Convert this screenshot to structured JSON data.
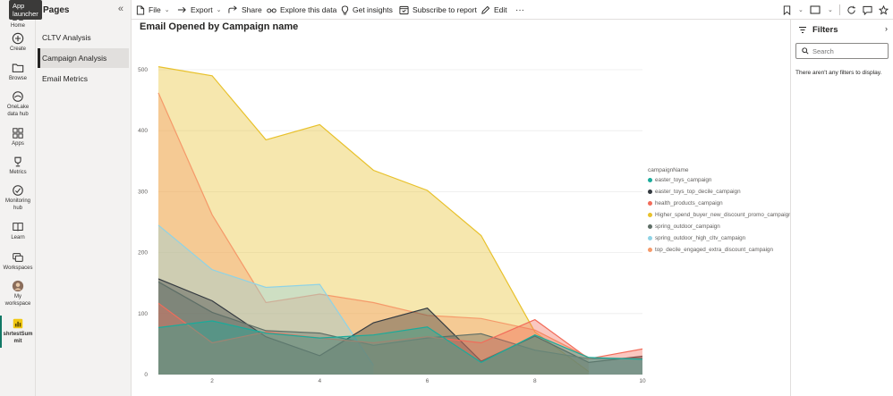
{
  "rail": {
    "tooltip": "App launcher",
    "items": [
      {
        "label": "Home",
        "icon": "home-icon"
      },
      {
        "label": "Create",
        "icon": "plus-circle-icon"
      },
      {
        "label": "Browse",
        "icon": "folder-icon"
      },
      {
        "label": "OneLake data hub",
        "label_lines": [
          "OneLake",
          "data hub"
        ],
        "icon": "onelake-icon"
      },
      {
        "label": "Apps",
        "icon": "apps-icon"
      },
      {
        "label": "Metrics",
        "icon": "trophy-icon"
      },
      {
        "label": "Monitoring hub",
        "label_lines": [
          "Monitoring",
          "hub"
        ],
        "icon": "monitoring-icon"
      },
      {
        "label": "Learn",
        "icon": "book-icon"
      },
      {
        "label": "Workspaces",
        "icon": "workspaces-icon"
      },
      {
        "label": "My workspace",
        "label_lines": [
          "My",
          "workspace"
        ],
        "icon": "avatar-icon"
      },
      {
        "label": "shrtestSummit",
        "label_lines": [
          "shrtestSum",
          "mit"
        ],
        "icon": "report-icon"
      }
    ]
  },
  "pages": {
    "title": "Pages",
    "items": [
      "CLTV Analysis",
      "Campaign Analysis",
      "Email Metrics"
    ],
    "active": "Campaign Analysis"
  },
  "toolbar": {
    "file": "File",
    "export": "Export",
    "share": "Share",
    "explore": "Explore this data",
    "insights": "Get insights",
    "subscribe": "Subscribe to report",
    "edit": "Edit",
    "more": "···"
  },
  "filters": {
    "title": "Filters",
    "search_placeholder": "Search",
    "empty_text": "There aren't any filters to display."
  },
  "chart_data": {
    "type": "area",
    "title": "Email Opened by Campaign name",
    "xlabel": "",
    "ylabel": "",
    "xlim": [
      1,
      10
    ],
    "ylim": [
      0,
      500
    ],
    "x_ticks": [
      2,
      4,
      6,
      8,
      10
    ],
    "y_ticks": [
      0,
      100,
      200,
      300,
      400,
      500
    ],
    "grid": true,
    "legend_title": "campaignName",
    "legend_position": "right",
    "series": [
      {
        "name": "Higher_spend_buyer_new_discount_promo_campaign",
        "color": "#E8C12B",
        "x": [
          1,
          2,
          3,
          4,
          5,
          6,
          7,
          8,
          9
        ],
        "values": [
          505,
          490,
          385,
          410,
          335,
          302,
          228,
          70,
          5
        ]
      },
      {
        "name": "top_decile_engaged_extra_discount_campaign",
        "color": "#F59A6A",
        "x": [
          1,
          2,
          3,
          4,
          5,
          6,
          7,
          8,
          9
        ],
        "values": [
          462,
          262,
          118,
          132,
          118,
          97,
          92,
          73,
          28
        ]
      },
      {
        "name": "spring_outdoor_high_cltv_campaign",
        "color": "#8FD3E6",
        "x": [
          1,
          2,
          3,
          4,
          5
        ],
        "values": [
          245,
          172,
          143,
          148,
          15
        ]
      },
      {
        "name": "easter_toys_top_decile_campaign",
        "color": "#343A40",
        "x": [
          1,
          2,
          3,
          4,
          5,
          6,
          7,
          8,
          9,
          10
        ],
        "values": [
          157,
          121,
          62,
          31,
          85,
          109,
          22,
          63,
          20,
          30
        ]
      },
      {
        "name": "spring_outdoor_campaign",
        "color": "#5E6E66",
        "x": [
          1,
          2,
          3,
          4,
          5,
          6,
          7,
          8,
          9,
          10
        ],
        "values": [
          152,
          102,
          72,
          68,
          48,
          60,
          67,
          40,
          26,
          27
        ]
      },
      {
        "name": "health_products_campaign",
        "color": "#F26C5A",
        "x": [
          1,
          2,
          3,
          4,
          5,
          6,
          7,
          8,
          9,
          10
        ],
        "values": [
          117,
          52,
          70,
          60,
          52,
          62,
          52,
          90,
          26,
          42
        ]
      },
      {
        "name": "easter_toys_campaign",
        "color": "#1AAB9B",
        "x": [
          1,
          2,
          3,
          4,
          5,
          6,
          7,
          8,
          9,
          10
        ],
        "values": [
          77,
          88,
          68,
          60,
          65,
          78,
          20,
          65,
          28,
          25
        ]
      }
    ],
    "legend_order": [
      "easter_toys_campaign",
      "easter_toys_top_decile_campaign",
      "health_products_campaign",
      "Higher_spend_buyer_new_discount_promo_campaign",
      "spring_outdoor_campaign",
      "spring_outdoor_high_cltv_campaign",
      "top_decile_engaged_extra_discount_campaign"
    ]
  }
}
